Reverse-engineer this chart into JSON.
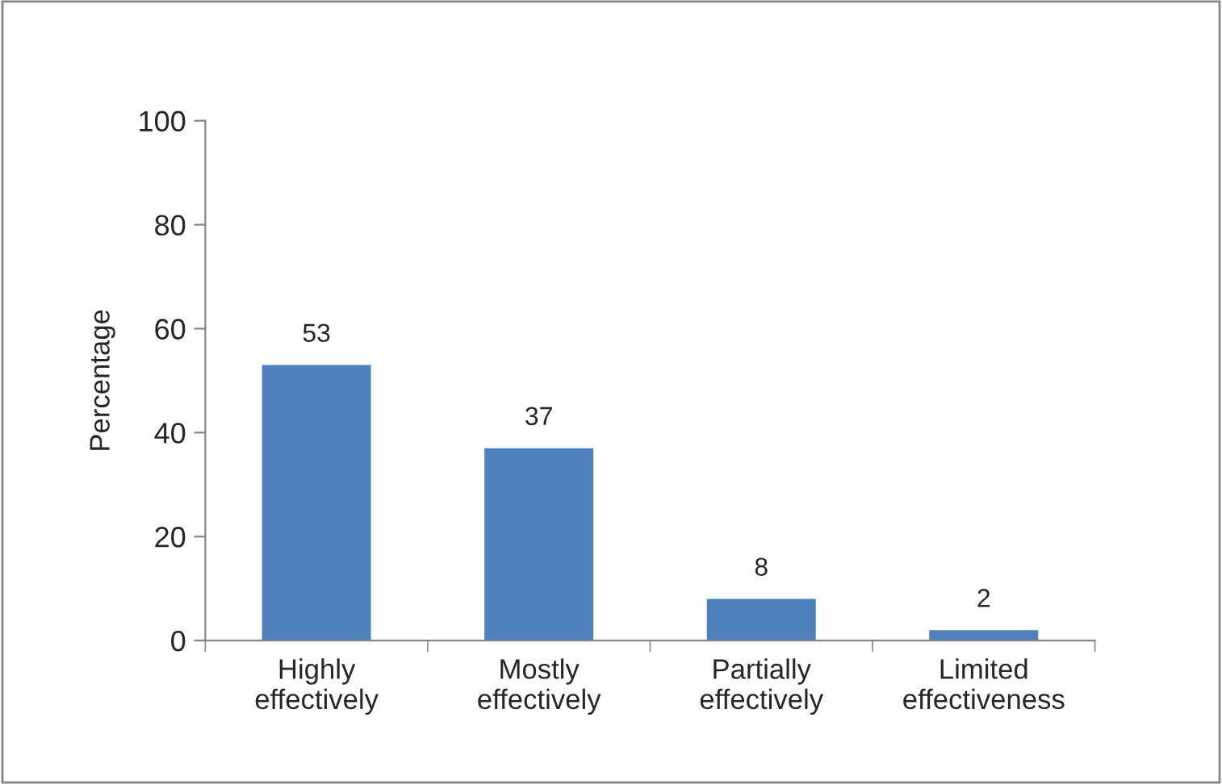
{
  "chart_data": {
    "type": "bar",
    "categories": [
      "Highly\neffectively",
      "Mostly\neffectively",
      "Partially\neffectively",
      "Limited\neffectiveness"
    ],
    "values": [
      53,
      37,
      8,
      2
    ],
    "color": "#4f81bd",
    "ylabel": "Percentage",
    "ylim": [
      0,
      100
    ],
    "yticks": [
      0,
      20,
      40,
      60,
      80,
      100
    ],
    "data_labels": true,
    "grid": false,
    "legend": false
  }
}
